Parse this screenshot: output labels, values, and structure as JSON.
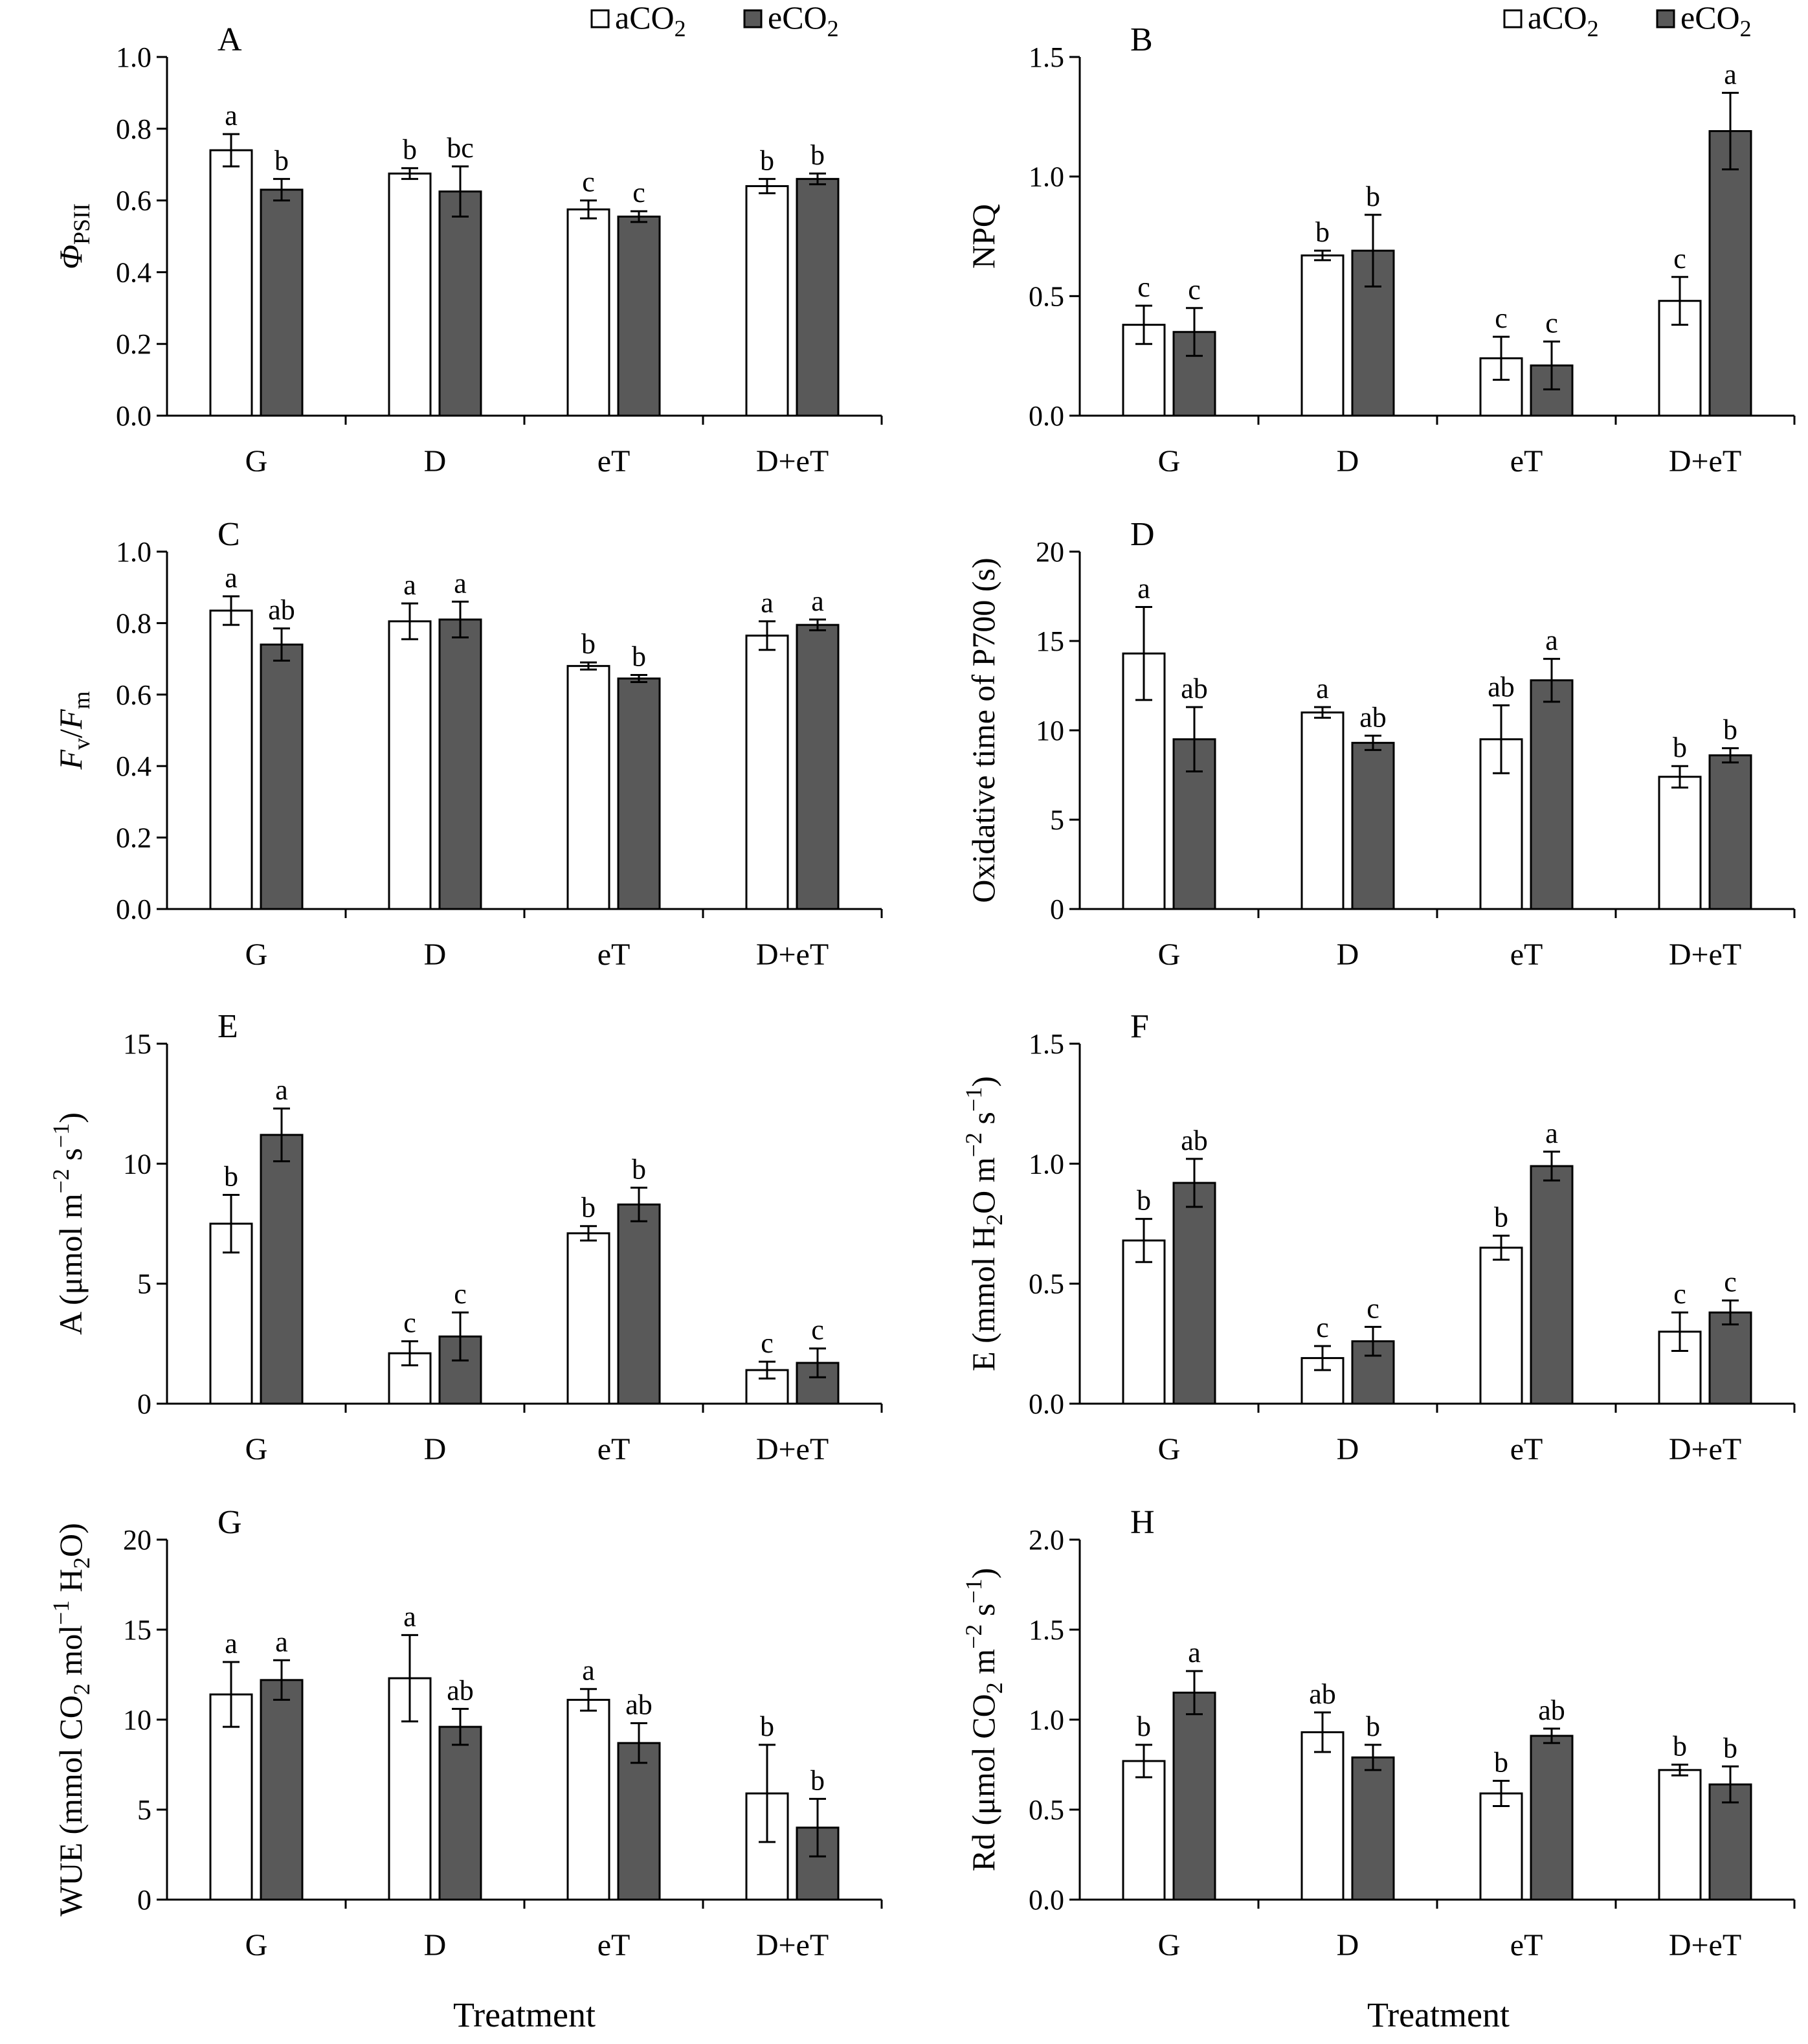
{
  "figure": {
    "x_axis_title": "Treatment",
    "legend": [
      {
        "name": "aCO2",
        "base": "aCO",
        "sub": "2",
        "color": "#ffffff"
      },
      {
        "name": "eCO2",
        "base": "eCO",
        "sub": "2",
        "color": "#595959"
      }
    ]
  },
  "chart_data": [
    {
      "type": "bar",
      "panel": "A",
      "ylabel_parts": [
        {
          "t": "Φ",
          "italic": true
        },
        {
          "t": "PSII",
          "sub": true
        }
      ],
      "categories": [
        "G",
        "D",
        "eT",
        "D+eT"
      ],
      "ylim": [
        0,
        1.0
      ],
      "ticks": [
        "0.0",
        "0.2",
        "0.4",
        "0.6",
        "0.8",
        "1.0"
      ],
      "legend": true,
      "series": [
        {
          "name": "aCO2",
          "values": [
            0.74,
            0.675,
            0.575,
            0.64
          ],
          "errors": [
            0.045,
            0.015,
            0.025,
            0.02
          ],
          "letters": [
            "a",
            "b",
            "c",
            "b"
          ]
        },
        {
          "name": "eCO2",
          "values": [
            0.63,
            0.625,
            0.555,
            0.66
          ],
          "errors": [
            0.03,
            0.07,
            0.015,
            0.015
          ],
          "letters": [
            "b",
            "bc",
            "c",
            "b"
          ]
        }
      ]
    },
    {
      "type": "bar",
      "panel": "B",
      "ylabel_parts": [
        {
          "t": "NPQ"
        }
      ],
      "categories": [
        "G",
        "D",
        "eT",
        "D+eT"
      ],
      "ylim": [
        0,
        1.5
      ],
      "ticks": [
        "0.0",
        "0.5",
        "1.0",
        "1.5"
      ],
      "legend": true,
      "series": [
        {
          "name": "aCO2",
          "values": [
            0.38,
            0.67,
            0.24,
            0.48
          ],
          "errors": [
            0.08,
            0.02,
            0.09,
            0.1
          ],
          "letters": [
            "c",
            "b",
            "c",
            "c"
          ]
        },
        {
          "name": "eCO2",
          "values": [
            0.35,
            0.69,
            0.21,
            1.19
          ],
          "errors": [
            0.1,
            0.15,
            0.1,
            0.16
          ],
          "letters": [
            "c",
            "b",
            "c",
            "a"
          ]
        }
      ]
    },
    {
      "type": "bar",
      "panel": "C",
      "ylabel_parts": [
        {
          "t": "F",
          "italic": true
        },
        {
          "t": "v",
          "sub": true
        },
        {
          "t": "/"
        },
        {
          "t": "F",
          "italic": true
        },
        {
          "t": "m",
          "sub": true
        }
      ],
      "categories": [
        "G",
        "D",
        "eT",
        "D+eT"
      ],
      "ylim": [
        0,
        1.0
      ],
      "ticks": [
        "0.0",
        "0.2",
        "0.4",
        "0.6",
        "0.8",
        "1.0"
      ],
      "legend": false,
      "series": [
        {
          "name": "aCO2",
          "values": [
            0.835,
            0.805,
            0.68,
            0.765
          ],
          "errors": [
            0.04,
            0.05,
            0.01,
            0.04
          ],
          "letters": [
            "a",
            "a",
            "b",
            "a"
          ]
        },
        {
          "name": "eCO2",
          "values": [
            0.74,
            0.81,
            0.645,
            0.795
          ],
          "errors": [
            0.045,
            0.05,
            0.01,
            0.015
          ],
          "letters": [
            "ab",
            "a",
            "b",
            "a"
          ]
        }
      ]
    },
    {
      "type": "bar",
      "panel": "D",
      "ylabel_parts": [
        {
          "t": "Oxidative time of P700 (s)"
        }
      ],
      "categories": [
        "G",
        "D",
        "eT",
        "D+eT"
      ],
      "ylim": [
        0,
        20
      ],
      "ticks": [
        "0",
        "5",
        "10",
        "15",
        "20"
      ],
      "legend": false,
      "series": [
        {
          "name": "aCO2",
          "values": [
            14.3,
            11.0,
            9.5,
            7.4
          ],
          "errors": [
            2.6,
            0.3,
            1.9,
            0.6
          ],
          "letters": [
            "a",
            "a",
            "ab",
            "b"
          ]
        },
        {
          "name": "eCO2",
          "values": [
            9.5,
            9.3,
            12.8,
            8.6
          ],
          "errors": [
            1.8,
            0.4,
            1.2,
            0.4
          ],
          "letters": [
            "ab",
            "ab",
            "a",
            "b"
          ]
        }
      ]
    },
    {
      "type": "bar",
      "panel": "E",
      "ylabel_parts": [
        {
          "t": "A (μmol m"
        },
        {
          "t": "−2",
          "sup": true
        },
        {
          "t": " s"
        },
        {
          "t": "−1",
          "sup": true
        },
        {
          "t": ")"
        }
      ],
      "categories": [
        "G",
        "D",
        "eT",
        "D+eT"
      ],
      "ylim": [
        0,
        15
      ],
      "ticks": [
        "0",
        "5",
        "10",
        "15"
      ],
      "legend": false,
      "series": [
        {
          "name": "aCO2",
          "values": [
            7.5,
            2.1,
            7.1,
            1.4
          ],
          "errors": [
            1.2,
            0.5,
            0.3,
            0.35
          ],
          "letters": [
            "b",
            "c",
            "b",
            "c"
          ]
        },
        {
          "name": "eCO2",
          "values": [
            11.2,
            2.8,
            8.3,
            1.7
          ],
          "errors": [
            1.1,
            1.0,
            0.7,
            0.6
          ],
          "letters": [
            "a",
            "c",
            "b",
            "c"
          ]
        }
      ]
    },
    {
      "type": "bar",
      "panel": "F",
      "ylabel_parts": [
        {
          "t": "E (mmol H"
        },
        {
          "t": "2",
          "sub": true
        },
        {
          "t": "O m"
        },
        {
          "t": "−2",
          "sup": true
        },
        {
          "t": " s"
        },
        {
          "t": "−1",
          "sup": true
        },
        {
          "t": ")"
        }
      ],
      "categories": [
        "G",
        "D",
        "eT",
        "D+eT"
      ],
      "ylim": [
        0,
        1.5
      ],
      "ticks": [
        "0.0",
        "0.5",
        "1.0",
        "1.5"
      ],
      "legend": false,
      "series": [
        {
          "name": "aCO2",
          "values": [
            0.68,
            0.19,
            0.65,
            0.3
          ],
          "errors": [
            0.09,
            0.05,
            0.05,
            0.08
          ],
          "letters": [
            "b",
            "c",
            "b",
            "c"
          ]
        },
        {
          "name": "eCO2",
          "values": [
            0.92,
            0.26,
            0.99,
            0.38
          ],
          "errors": [
            0.1,
            0.06,
            0.06,
            0.05
          ],
          "letters": [
            "ab",
            "c",
            "a",
            "c"
          ]
        }
      ]
    },
    {
      "type": "bar",
      "panel": "G",
      "ylabel_parts": [
        {
          "t": "WUE (mmol CO"
        },
        {
          "t": "2",
          "sub": true
        },
        {
          "t": " mol"
        },
        {
          "t": "−1",
          "sup": true
        },
        {
          "t": " H"
        },
        {
          "t": "2",
          "sub": true
        },
        {
          "t": "O)"
        }
      ],
      "categories": [
        "G",
        "D",
        "eT",
        "D+eT"
      ],
      "ylim": [
        0,
        20
      ],
      "ticks": [
        "0",
        "5",
        "10",
        "15",
        "20"
      ],
      "legend": false,
      "series": [
        {
          "name": "aCO2",
          "values": [
            11.4,
            12.3,
            11.1,
            5.9
          ],
          "errors": [
            1.8,
            2.4,
            0.6,
            2.7
          ],
          "letters": [
            "a",
            "a",
            "a",
            "b"
          ]
        },
        {
          "name": "eCO2",
          "values": [
            12.2,
            9.6,
            8.7,
            4.0
          ],
          "errors": [
            1.1,
            1.0,
            1.1,
            1.6
          ],
          "letters": [
            "a",
            "ab",
            "ab",
            "b"
          ]
        }
      ]
    },
    {
      "type": "bar",
      "panel": "H",
      "ylabel_parts": [
        {
          "t": "Rd (μmol CO"
        },
        {
          "t": "2",
          "sub": true
        },
        {
          "t": " m"
        },
        {
          "t": "−2",
          "sup": true
        },
        {
          "t": " s"
        },
        {
          "t": "−1",
          "sup": true
        },
        {
          "t": ")"
        }
      ],
      "categories": [
        "G",
        "D",
        "eT",
        "D+eT"
      ],
      "ylim": [
        0,
        2.0
      ],
      "ticks": [
        "0.0",
        "0.5",
        "1.0",
        "1.5",
        "2.0"
      ],
      "legend": false,
      "series": [
        {
          "name": "aCO2",
          "values": [
            0.77,
            0.93,
            0.59,
            0.72
          ],
          "errors": [
            0.09,
            0.11,
            0.07,
            0.03
          ],
          "letters": [
            "b",
            "ab",
            "b",
            "b"
          ]
        },
        {
          "name": "eCO2",
          "values": [
            1.15,
            0.79,
            0.91,
            0.64
          ],
          "errors": [
            0.12,
            0.07,
            0.04,
            0.1
          ],
          "letters": [
            "a",
            "b",
            "ab",
            "b"
          ]
        }
      ]
    }
  ]
}
